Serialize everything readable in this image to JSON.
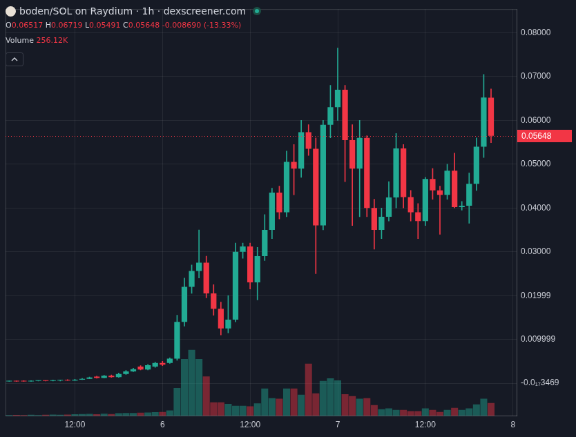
{
  "chart_data": {
    "type": "candlestick",
    "title": "boden/SOL on Raydium · 1h · dexscreener.com",
    "subtitle": "O0.06517 H0.06719 L0.05491 C0.05648 -0.008690 (-13.33%)",
    "categories": [
      null,
      null,
      null,
      null,
      null,
      null,
      null,
      null,
      null,
      "12:00",
      null,
      null,
      null,
      null,
      null,
      null,
      null,
      null,
      null,
      null,
      null,
      "6",
      null,
      null,
      null,
      null,
      null,
      null,
      null,
      null,
      null,
      null,
      null,
      "12:00",
      null,
      null,
      null,
      null,
      null,
      null,
      null,
      null,
      null,
      null,
      null,
      "7",
      null,
      null,
      null,
      null,
      null,
      null,
      null,
      null,
      null,
      null,
      null,
      "12:00",
      null,
      null,
      null,
      null,
      null,
      null,
      null,
      null,
      null,
      null,
      null,
      "8"
    ],
    "open": [
      0.0004,
      0.0005,
      0.0005,
      0.0004,
      0.0005,
      0.0006,
      0.0005,
      0.0006,
      0.0007,
      0.0006,
      0.0008,
      0.001,
      0.0015,
      0.0012,
      0.0017,
      0.0014,
      0.0021,
      0.0027,
      0.0038,
      0.0031,
      0.0038,
      0.0046,
      0.0046,
      0.0056,
      0.014,
      0.022,
      0.0256,
      0.0275,
      0.0205,
      0.017,
      0.0125,
      0.0145,
      0.03,
      0.0312,
      0.023,
      0.029,
      0.035,
      0.0435,
      0.039,
      0.0505,
      0.049,
      0.0573,
      0.0535,
      0.036,
      0.059,
      0.063,
      0.067,
      0.0555,
      0.049,
      0.056,
      0.04,
      0.035,
      0.038,
      0.0424,
      0.0536,
      0.0425,
      0.039,
      0.037,
      0.0466,
      0.044,
      0.043,
      0.0485,
      0.0402,
      0.0405,
      0.0455,
      0.054,
      0.06517,
      null,
      null,
      null
    ],
    "high": [
      0.0005,
      0.0005,
      0.0006,
      0.0006,
      0.0006,
      0.0006,
      0.0007,
      0.0007,
      0.0008,
      0.0009,
      0.0011,
      0.0014,
      0.0016,
      0.0018,
      0.0019,
      0.0023,
      0.0029,
      0.0034,
      0.004,
      0.0043,
      0.0048,
      0.005,
      0.0058,
      0.0155,
      0.024,
      0.027,
      0.035,
      0.029,
      0.0225,
      0.0185,
      0.02,
      0.032,
      0.032,
      0.032,
      0.031,
      0.0385,
      0.0445,
      0.045,
      0.053,
      0.0545,
      0.06,
      0.059,
      0.056,
      0.06,
      0.068,
      0.0765,
      0.068,
      0.059,
      0.06,
      0.0565,
      0.042,
      0.04,
      0.046,
      0.057,
      0.0545,
      0.044,
      0.041,
      0.047,
      0.049,
      0.045,
      0.05,
      0.0525,
      0.0415,
      0.048,
      0.056,
      0.0705,
      0.06719,
      null,
      null,
      null
    ],
    "low": [
      0.0004,
      0.0004,
      0.0004,
      0.0004,
      0.0005,
      0.0005,
      0.0005,
      0.0005,
      0.0006,
      0.0006,
      0.0008,
      0.001,
      0.0011,
      0.0012,
      0.0013,
      0.0013,
      0.002,
      0.0026,
      0.003,
      0.003,
      0.0036,
      0.004,
      0.0045,
      0.0052,
      0.013,
      0.0205,
      0.024,
      0.0195,
      0.0155,
      0.011,
      0.0115,
      0.014,
      0.0285,
      0.0215,
      0.019,
      0.028,
      0.033,
      0.0375,
      0.038,
      0.043,
      0.047,
      0.052,
      0.025,
      0.035,
      0.056,
      0.06,
      0.046,
      0.036,
      0.038,
      0.038,
      0.0306,
      0.033,
      0.037,
      0.04,
      0.04,
      0.037,
      0.033,
      0.036,
      0.042,
      0.034,
      0.042,
      0.04,
      0.0395,
      0.0365,
      0.044,
      0.0515,
      0.05491,
      null,
      null,
      null
    ],
    "close": [
      0.0005,
      0.0004,
      0.0004,
      0.0005,
      0.0006,
      0.0005,
      0.0006,
      0.0007,
      0.0006,
      0.0008,
      0.001,
      0.0013,
      0.0012,
      0.0017,
      0.0014,
      0.0021,
      0.0027,
      0.0032,
      0.0031,
      0.0041,
      0.0046,
      0.0042,
      0.0056,
      0.014,
      0.022,
      0.0256,
      0.0275,
      0.0205,
      0.017,
      0.0125,
      0.0145,
      0.03,
      0.0312,
      0.023,
      0.029,
      0.035,
      0.0435,
      0.039,
      0.0505,
      0.049,
      0.0573,
      0.0535,
      0.036,
      0.059,
      0.063,
      0.067,
      0.0555,
      0.049,
      0.056,
      0.04,
      0.035,
      0.038,
      0.0424,
      0.0536,
      0.0425,
      0.039,
      0.037,
      0.0466,
      0.044,
      0.043,
      0.0485,
      0.0402,
      0.0405,
      0.0455,
      0.054,
      0.0652,
      0.05648,
      null,
      null,
      null
    ],
    "volume": {
      "name": "Volume",
      "last_label": "256.12K",
      "axis": "y2",
      "values": [
        20000,
        22000,
        18000,
        25000,
        20000,
        24000,
        28000,
        26000,
        30000,
        35000,
        38000,
        42000,
        36000,
        45000,
        40000,
        55000,
        60000,
        58000,
        65000,
        70000,
        75000,
        80000,
        110000,
        550000,
        1120000,
        1300000,
        1120000,
        780000,
        270000,
        270000,
        240000,
        200000,
        200000,
        190000,
        250000,
        540000,
        350000,
        340000,
        540000,
        540000,
        420000,
        1030000,
        445000,
        690000,
        740000,
        700000,
        430000,
        390000,
        340000,
        350000,
        215000,
        135000,
        150000,
        120000,
        120000,
        95000,
        95000,
        150000,
        120000,
        80000,
        120000,
        160000,
        120000,
        150000,
        230000,
        340000,
        256120,
        null,
        null,
        null
      ]
    },
    "last_price": {
      "value": 0.05648,
      "label": "0.05648"
    },
    "ylim": [
      -0.0075,
      0.0854
    ],
    "yticks": [
      {
        "value": 0.08,
        "label": "0.08000"
      },
      {
        "value": 0.07,
        "label": "0.07000"
      },
      {
        "value": 0.06,
        "label": "0.06000"
      },
      {
        "value": 0.05,
        "label": "0.05000"
      },
      {
        "value": 0.04,
        "label": "0.04000"
      },
      {
        "value": 0.03,
        "label": "0.03000"
      },
      0.01999,
      0.009999,
      {
        "value": -3.469e-18,
        "label": "-0.0₁₇3469"
      }
    ],
    "y2lim": [
      0,
      8000000
    ],
    "grid": true
  }
}
